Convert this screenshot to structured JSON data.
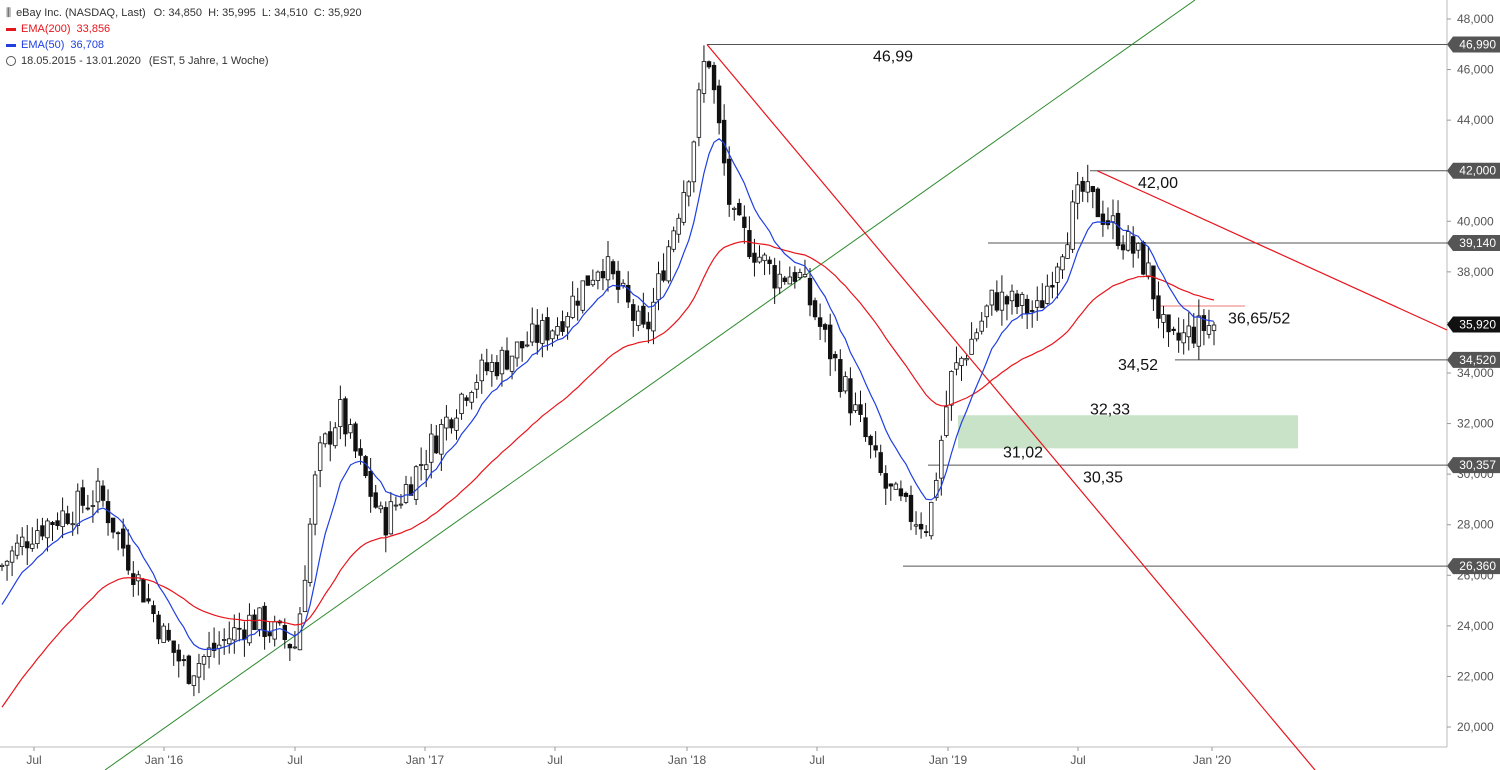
{
  "header": {
    "instrument": "eBay Inc. (NASDAQ, Last)",
    "ohlc": "O: 34,850  H: 35,995  L: 34,510  C: 35,920",
    "ema200_label": "EMA(200)",
    "ema200_value": "33,856",
    "ema50_label": "EMA(50)",
    "ema50_value": "36,708",
    "range": "18.05.2015 - 13.01.2020",
    "range_info": "(EST, 5 Jahre, 1 Woche)",
    "colors": {
      "ema200": "#e8141b",
      "ema50": "#1f3fe0",
      "trend_up": "#2e8b2e",
      "trend_down": "#e8141b",
      "support_zone": "#c9e3c9"
    }
  },
  "chart_data": {
    "type": "candlestick",
    "x_ticks": [
      "Jul",
      "Jan '16",
      "Jul",
      "Jan '17",
      "Jul",
      "Jan '18",
      "Jul",
      "Jan '19",
      "Jul",
      "Jan '20"
    ],
    "y_ticks": [
      "48,000",
      "46,000",
      "44,000",
      "42,000",
      "40,000",
      "38,000",
      "36,000",
      "34,000",
      "32,000",
      "30,000",
      "28,000",
      "26,000",
      "24,000",
      "22,000",
      "20,000"
    ],
    "ylim": [
      19.5,
      48.3
    ],
    "price_tags": [
      {
        "label": "46,990",
        "value": 46.99,
        "color": "#555555"
      },
      {
        "label": "42,000",
        "value": 42.0,
        "color": "#555555"
      },
      {
        "label": "39,140",
        "value": 39.14,
        "color": "#555555"
      },
      {
        "label": "35,920",
        "value": 35.92,
        "color": "#111111"
      },
      {
        "label": "34,520",
        "value": 34.52,
        "color": "#555555"
      },
      {
        "label": "30,357",
        "value": 30.357,
        "color": "#555555"
      },
      {
        "label": "26,360",
        "value": 26.36,
        "color": "#555555"
      }
    ],
    "annotations": [
      "46,99",
      "42,00",
      "36,65/52",
      "34,52",
      "32,33",
      "31,02",
      "30,35"
    ],
    "support_zone": [
      31.02,
      32.33
    ],
    "key_points": [
      {
        "date": "2015-05",
        "close": 25.9
      },
      {
        "date": "2015-07",
        "close": 27.8
      },
      {
        "date": "2015-10",
        "close": 29.2
      },
      {
        "date": "2016-01",
        "close": 23.5
      },
      {
        "date": "2016-02",
        "close": 22.2
      },
      {
        "date": "2016-05",
        "close": 24.3
      },
      {
        "date": "2016-07",
        "close": 23.2
      },
      {
        "date": "2016-08",
        "close": 30.5
      },
      {
        "date": "2016-09",
        "close": 32.5
      },
      {
        "date": "2016-11",
        "close": 28.0
      },
      {
        "date": "2016-12",
        "close": 29.4
      },
      {
        "date": "2017-03",
        "close": 33.7
      },
      {
        "date": "2017-07",
        "close": 36.0
      },
      {
        "date": "2017-09",
        "close": 38.5
      },
      {
        "date": "2017-11",
        "close": 35.4
      },
      {
        "date": "2018-01",
        "close": 42.3
      },
      {
        "date": "2018-01",
        "close": 46.99
      },
      {
        "date": "2018-03",
        "close": 40.0
      },
      {
        "date": "2018-05",
        "close": 37.8
      },
      {
        "date": "2018-06",
        "close": 38.0
      },
      {
        "date": "2018-08",
        "close": 33.8
      },
      {
        "date": "2018-10",
        "close": 29.5
      },
      {
        "date": "2018-11",
        "close": 28.5
      },
      {
        "date": "2018-12",
        "close": 28.0
      },
      {
        "date": "2019-01",
        "close": 33.7
      },
      {
        "date": "2019-03",
        "close": 37.0
      },
      {
        "date": "2019-05",
        "close": 36.4
      },
      {
        "date": "2019-07",
        "close": 41.2
      },
      {
        "date": "2019-08",
        "close": 40.3
      },
      {
        "date": "2019-10",
        "close": 38.2
      },
      {
        "date": "2019-11",
        "close": 35.0
      },
      {
        "date": "2019-12",
        "close": 35.6
      },
      {
        "date": "2020-01",
        "close": 35.92
      }
    ],
    "series": [
      {
        "name": "EMA(200)",
        "last": 33.856
      },
      {
        "name": "EMA(50)",
        "last": 36.708
      }
    ]
  }
}
